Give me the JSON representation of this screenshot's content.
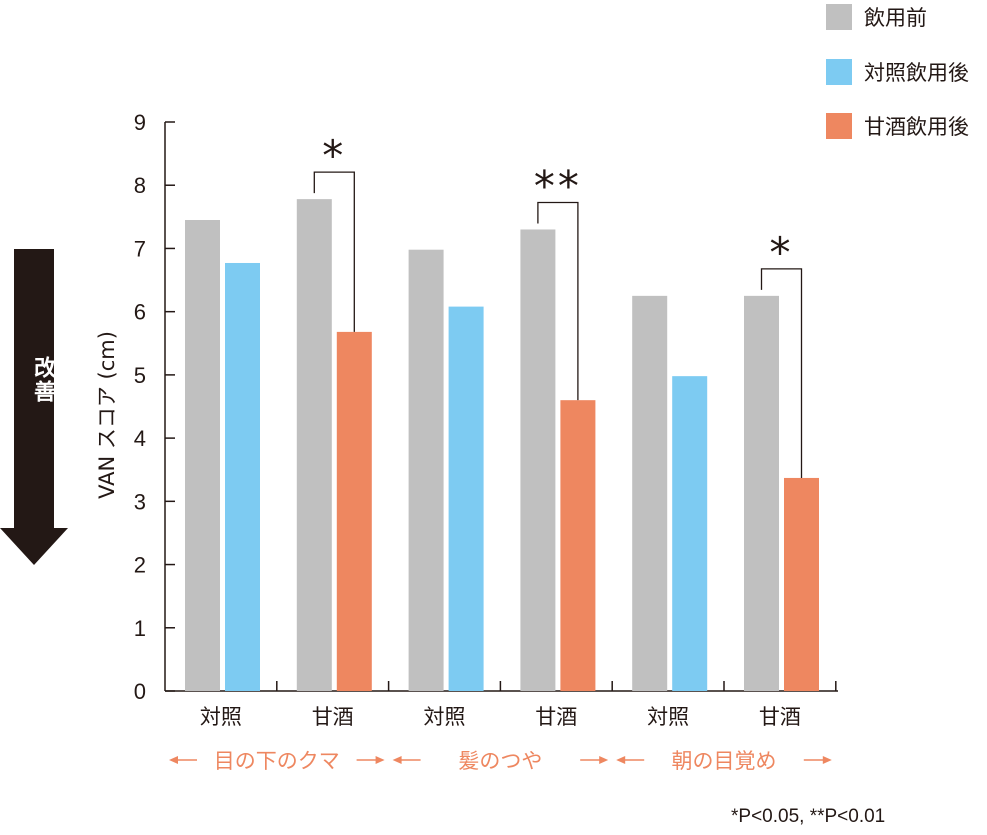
{
  "chart_data": {
    "type": "bar",
    "title": "",
    "xlabel": "",
    "ylabel": "VAN スコア (cm)",
    "ylim": [
      0,
      9
    ],
    "yticks": [
      0,
      1,
      2,
      3,
      4,
      5,
      6,
      7,
      8,
      9
    ],
    "grid": false,
    "legend_position": "top-right",
    "categories": [
      "対照",
      "甘酒",
      "対照",
      "甘酒",
      "対照",
      "甘酒"
    ],
    "groups": [
      {
        "label": "目の下のクマ",
        "categories": [
          0,
          1
        ]
      },
      {
        "label": "髪のつや",
        "categories": [
          2,
          3
        ]
      },
      {
        "label": "朝の目覚め",
        "categories": [
          4,
          5
        ]
      }
    ],
    "series": [
      {
        "name": "飲用前",
        "color": "#c0c0c0",
        "values": [
          7.45,
          7.78,
          6.98,
          7.3,
          6.25,
          6.25
        ]
      },
      {
        "name": "対照飲用後",
        "color": "#7dcbf2",
        "values": [
          6.77,
          null,
          6.08,
          null,
          4.98,
          null
        ]
      },
      {
        "name": "甘酒飲用後",
        "color": "#ee8760",
        "values": [
          null,
          5.68,
          null,
          4.6,
          null,
          3.37
        ]
      }
    ],
    "significance": [
      {
        "category": 1,
        "label": "*"
      },
      {
        "category": 3,
        "label": "**"
      },
      {
        "category": 5,
        "label": "*"
      }
    ],
    "annotations": {
      "improvement": "改善",
      "footnote": "*P<0.05, **P<0.01"
    }
  },
  "colors": {
    "axis": "#231815",
    "group_label": "#ee8760",
    "arrow_fill": "#231815"
  }
}
